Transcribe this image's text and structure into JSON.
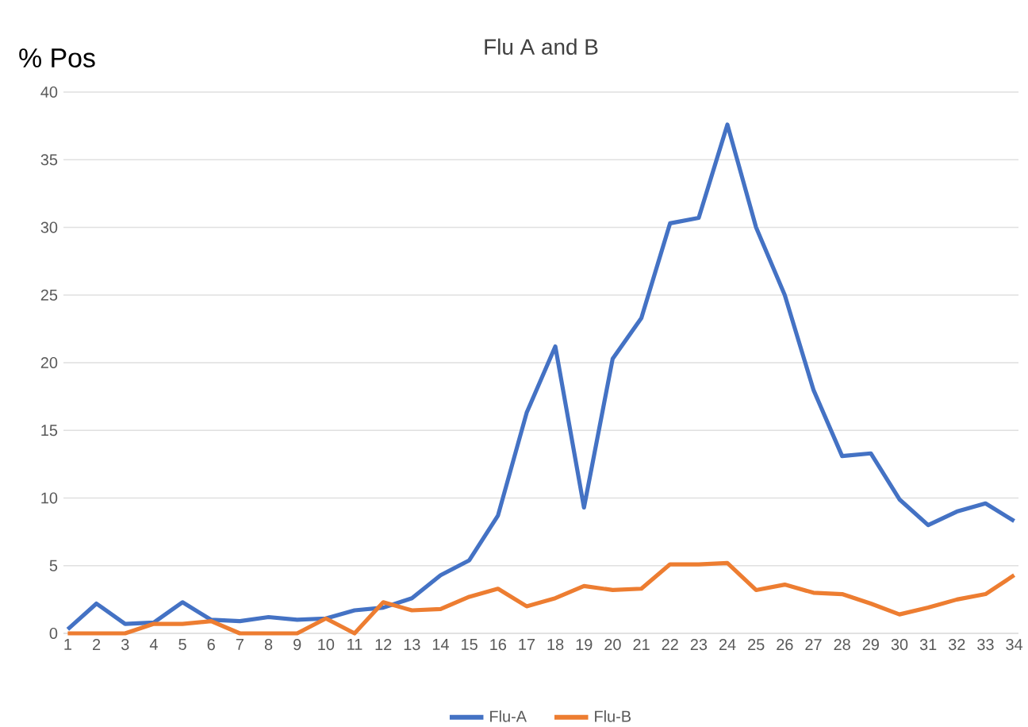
{
  "chart_data": {
    "type": "line",
    "title": "Flu A and B",
    "ylabel": "% Pos",
    "categories": [
      "1",
      "2",
      "3",
      "4",
      "5",
      "6",
      "7",
      "8",
      "9",
      "10",
      "11",
      "12",
      "13",
      "14",
      "15",
      "16",
      "17",
      "18",
      "19",
      "20",
      "21",
      "22",
      "23",
      "24",
      "25",
      "26",
      "27",
      "28",
      "29",
      "30",
      "31",
      "32",
      "33",
      "34"
    ],
    "series": [
      {
        "name": "Flu-A",
        "color": "#4472c4",
        "values": [
          0.3,
          2.2,
          0.7,
          0.8,
          2.3,
          1.0,
          0.9,
          1.2,
          1.0,
          1.1,
          1.7,
          1.9,
          2.6,
          4.3,
          5.4,
          8.7,
          16.3,
          21.2,
          9.3,
          20.3,
          23.3,
          30.3,
          30.7,
          37.6,
          30.0,
          25.0,
          18.0,
          13.1,
          13.3,
          9.9,
          8.0,
          9.0,
          9.6,
          8.3
        ]
      },
      {
        "name": "Flu-B",
        "color": "#ed7d31",
        "values": [
          0,
          0,
          0,
          0.7,
          0.7,
          0.9,
          0,
          0,
          0,
          1.1,
          0,
          2.3,
          1.7,
          1.8,
          2.7,
          3.3,
          2.0,
          2.6,
          3.5,
          3.2,
          3.3,
          5.1,
          5.1,
          5.2,
          3.2,
          3.6,
          3.0,
          2.9,
          2.2,
          1.4,
          1.9,
          2.5,
          2.9,
          4.3
        ]
      }
    ],
    "ylim": [
      0,
      40
    ],
    "yticks": [
      0,
      5,
      10,
      15,
      20,
      25,
      30,
      35,
      40
    ],
    "grid": "y",
    "legend": "bottom",
    "marker": "none",
    "line_style": "solid"
  }
}
